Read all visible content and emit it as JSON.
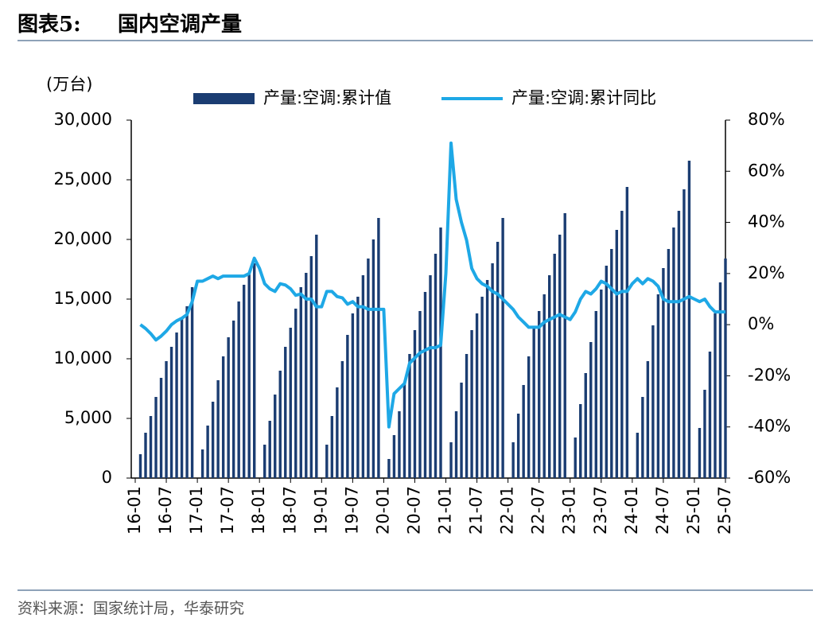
{
  "header": {
    "label": "图表5:",
    "title": "国内空调产量"
  },
  "source": "资料来源：国家统计局，华泰研究",
  "chart_data": {
    "type": "bar-line",
    "y_label": "(万台)",
    "categories": [
      "16-01",
      null,
      null,
      null,
      null,
      null,
      "16-07",
      null,
      null,
      null,
      null,
      null,
      "17-01",
      null,
      null,
      null,
      null,
      null,
      "17-07",
      null,
      null,
      null,
      null,
      null,
      "18-01",
      null,
      null,
      null,
      null,
      null,
      "18-07",
      null,
      null,
      null,
      null,
      null,
      "19-01",
      null,
      null,
      null,
      null,
      null,
      "19-07",
      null,
      null,
      null,
      null,
      null,
      "20-01",
      null,
      null,
      null,
      null,
      null,
      "20-07",
      null,
      null,
      null,
      null,
      null,
      "21-01",
      null,
      null,
      null,
      null,
      null,
      "21-07",
      null,
      null,
      null,
      null,
      null,
      "22-01",
      null,
      null,
      null,
      null,
      null,
      "22-07",
      null,
      null,
      null,
      null,
      null,
      "23-01",
      null,
      null,
      null,
      null,
      null,
      "23-07",
      null,
      null,
      null,
      null,
      null,
      "24-01",
      null,
      null,
      null,
      null,
      null,
      "24-07",
      null,
      null,
      null,
      null,
      null,
      "25-01",
      null,
      null,
      null,
      null,
      null,
      "25-07"
    ],
    "series": [
      {
        "name": "产量:空调:累计值",
        "type": "bar",
        "color": "#1b3d72",
        "values": [
          null,
          2000,
          3800,
          5200,
          6800,
          8400,
          9800,
          11000,
          12200,
          13400,
          14400,
          16000,
          null,
          2400,
          4400,
          6400,
          8200,
          10200,
          11800,
          13200,
          14800,
          16200,
          17200,
          18000,
          null,
          2800,
          4800,
          7000,
          9000,
          11000,
          12600,
          14200,
          16000,
          17200,
          18600,
          20400,
          null,
          2800,
          5200,
          7600,
          9800,
          12000,
          13800,
          15200,
          17000,
          18400,
          20000,
          21800,
          null,
          1600,
          3600,
          5600,
          8000,
          10400,
          12400,
          14000,
          15600,
          17000,
          18800,
          21000,
          null,
          3000,
          5600,
          8000,
          10400,
          12400,
          13800,
          15200,
          16600,
          18000,
          19800,
          21800,
          null,
          3000,
          5400,
          7800,
          10200,
          12600,
          14000,
          15400,
          17000,
          18800,
          20400,
          22200,
          null,
          3400,
          6200,
          8800,
          11400,
          14000,
          15800,
          17800,
          19200,
          20800,
          22400,
          24400,
          null,
          3800,
          6800,
          9800,
          12800,
          15400,
          17600,
          19200,
          21000,
          22400,
          24200,
          26600,
          null,
          4200,
          7400,
          10600,
          13800,
          16400,
          18400
        ]
      },
      {
        "name": "产量:空调:累计同比",
        "type": "line",
        "axis": "y2",
        "color": "#1ea8e6",
        "values": [
          null,
          0,
          -1.5,
          -3.5,
          -6,
          -4.5,
          -2.5,
          0,
          1.5,
          2.5,
          4,
          9,
          17,
          17,
          18,
          19,
          18,
          19,
          19,
          19,
          19,
          19,
          20,
          26,
          22,
          16,
          14,
          13,
          16,
          15.5,
          14,
          11.5,
          12,
          10,
          10,
          7,
          7,
          13,
          13,
          11,
          10.5,
          8,
          9,
          7,
          7,
          6,
          6,
          6,
          6,
          -40,
          -27,
          -25,
          -23,
          -15,
          -13,
          -11,
          -10,
          -9,
          -9,
          -8,
          20,
          71,
          49,
          40,
          33,
          22,
          18,
          16,
          15,
          13,
          12,
          10,
          8,
          6,
          3,
          1,
          -1,
          -1,
          -1,
          1,
          2,
          3,
          4,
          3,
          2,
          5,
          10,
          13,
          12,
          14,
          17,
          16,
          14,
          12,
          13,
          13,
          16,
          18,
          16,
          18,
          17,
          15,
          10,
          9,
          9,
          9,
          10,
          11,
          10,
          9,
          10,
          7,
          5,
          5,
          5
        ]
      }
    ],
    "ylim": [
      0,
      30000
    ],
    "yticks": [
      0,
      {
        "value": 5000,
        "label": "5,000"
      },
      {
        "value": 10000,
        "label": "10,000"
      },
      {
        "value": 15000,
        "label": "15,000"
      },
      {
        "value": 20000,
        "label": "20,000"
      },
      {
        "value": 25000,
        "label": "25,000"
      },
      {
        "value": 30000,
        "label": "30,000"
      }
    ],
    "y2lim": [
      -60,
      80
    ],
    "y2ticks": [
      {
        "value": -60,
        "label": "-60%"
      },
      {
        "value": -40,
        "label": "-40%"
      },
      {
        "value": -20,
        "label": "-20%"
      },
      {
        "value": 0,
        "label": "0%"
      },
      {
        "value": 20,
        "label": "20%"
      },
      {
        "value": 40,
        "label": "40%"
      },
      {
        "value": 60,
        "label": "60%"
      },
      {
        "value": 80,
        "label": "80%"
      }
    ],
    "legend": "top"
  }
}
